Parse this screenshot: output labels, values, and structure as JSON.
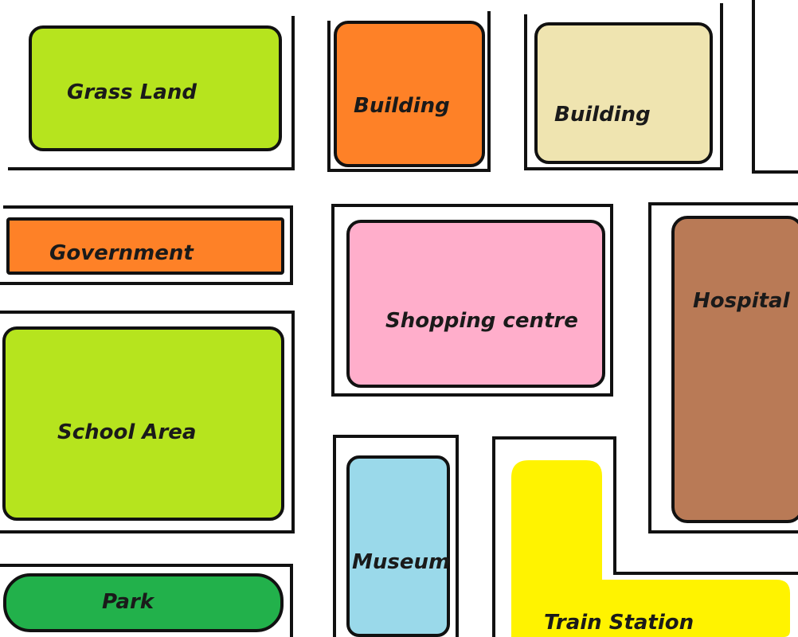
{
  "map": {
    "places": [
      {
        "id": "grass-land",
        "label": "Grass Land",
        "color": "#b6e41e"
      },
      {
        "id": "building-1",
        "label": "Building",
        "color": "#fe8127"
      },
      {
        "id": "building-2",
        "label": "Building",
        "color": "#efe4b0"
      },
      {
        "id": "government",
        "label": "Government",
        "color": "#fe8127"
      },
      {
        "id": "shopping-centre",
        "label": "Shopping centre",
        "color": "#ffaecb"
      },
      {
        "id": "hospital",
        "label": "Hospital",
        "color": "#b97a56"
      },
      {
        "id": "school-area",
        "label": "School Area",
        "color": "#b6e41e"
      },
      {
        "id": "museum",
        "label": "Museum",
        "color": "#9ad9ea"
      },
      {
        "id": "park",
        "label": "Park",
        "color": "#22b14b"
      },
      {
        "id": "train-station",
        "label": "Train Station",
        "color": "#fff300"
      }
    ],
    "colors": {
      "background": "#ffffff",
      "outline": "#111111"
    }
  }
}
